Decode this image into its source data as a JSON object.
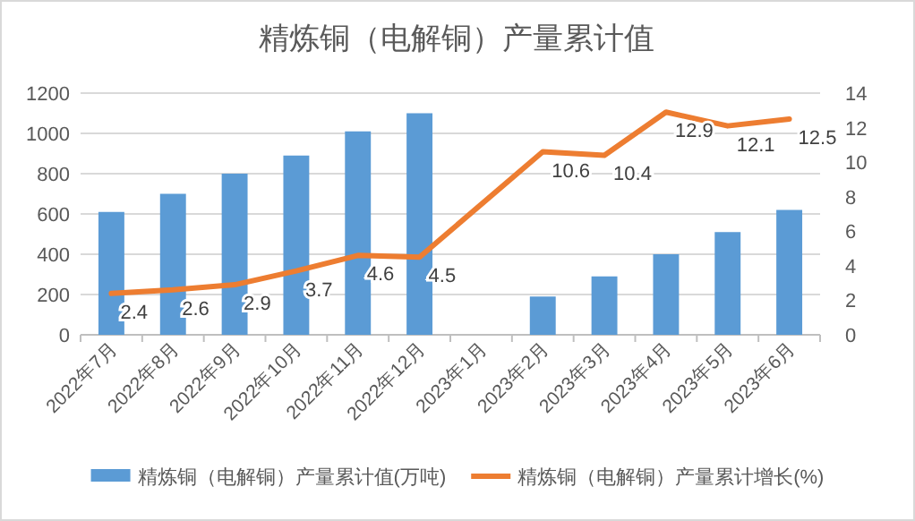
{
  "chart_data": {
    "type": "bar",
    "title": "精炼铜（电解铜）产量累计值",
    "categories": [
      "2022年7月",
      "2022年8月",
      "2022年9月",
      "2022年10月",
      "2022年11月",
      "2022年12月",
      "2023年1月",
      "2023年2月",
      "2023年3月",
      "2023年4月",
      "2023年5月",
      "2023年6月"
    ],
    "series": [
      {
        "name": "精炼铜（电解铜）产量累计值(万吨)",
        "color": "#5b9bd5",
        "values": [
          610,
          700,
          800,
          890,
          1010,
          1100,
          null,
          190,
          290,
          400,
          510,
          620
        ]
      },
      {
        "name": "精炼铜（电解铜）产量累计增长(%)",
        "type": "line",
        "axis": "y2",
        "color": "#ed7d31",
        "values": [
          2.4,
          2.6,
          2.9,
          3.7,
          4.6,
          4.5,
          null,
          10.6,
          10.4,
          12.9,
          12.1,
          12.5
        ],
        "value_labels": [
          "2.4",
          "2.6",
          "2.9",
          "3.7",
          "4.6",
          "4.5",
          null,
          "10.6",
          "10.4",
          "12.9",
          "12.1",
          "12.5"
        ]
      }
    ],
    "ylim": [
      0,
      1200
    ],
    "yticks": [
      0,
      200,
      400,
      600,
      800,
      1000,
      1200
    ],
    "y2lim": [
      0,
      14
    ],
    "y2ticks": [
      0,
      2,
      4,
      6,
      8,
      10,
      12,
      14
    ],
    "grid": "y",
    "legend": "bottom",
    "marker": "none",
    "line_style": "solid"
  }
}
